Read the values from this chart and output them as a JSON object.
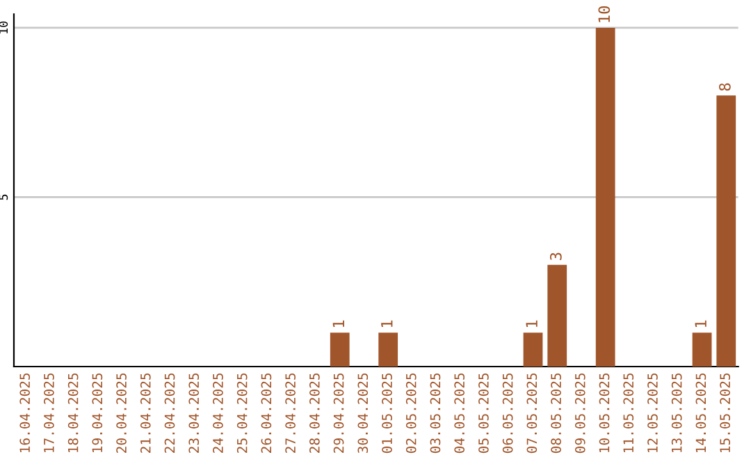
{
  "chart_data": {
    "type": "bar",
    "categories": [
      "16.04.2025",
      "17.04.2025",
      "18.04.2025",
      "19.04.2025",
      "20.04.2025",
      "21.04.2025",
      "22.04.2025",
      "23.04.2025",
      "24.04.2025",
      "25.04.2025",
      "26.04.2025",
      "27.04.2025",
      "28.04.2025",
      "29.04.2025",
      "30.04.2025",
      "01.05.2025",
      "02.05.2025",
      "03.05.2025",
      "04.05.2025",
      "05.05.2025",
      "06.05.2025",
      "07.05.2025",
      "08.05.2025",
      "09.05.2025",
      "10.05.2025",
      "11.05.2025",
      "12.05.2025",
      "13.05.2025",
      "14.05.2025",
      "15.05.2025"
    ],
    "values": [
      0,
      0,
      0,
      0,
      0,
      0,
      0,
      0,
      0,
      0,
      0,
      0,
      0,
      1,
      0,
      1,
      0,
      0,
      0,
      0,
      0,
      1,
      3,
      0,
      10,
      0,
      0,
      0,
      1,
      8
    ],
    "value_labels": [
      null,
      null,
      null,
      null,
      null,
      null,
      null,
      null,
      null,
      null,
      null,
      null,
      null,
      "1",
      null,
      "1",
      null,
      null,
      null,
      null,
      null,
      "1",
      "3",
      null,
      "10",
      null,
      null,
      null,
      "1",
      "8"
    ],
    "color": "#a0552a",
    "ylim": [
      0,
      10.4
    ],
    "yticks": [
      5,
      10
    ],
    "grid": "y",
    "legend": false
  }
}
